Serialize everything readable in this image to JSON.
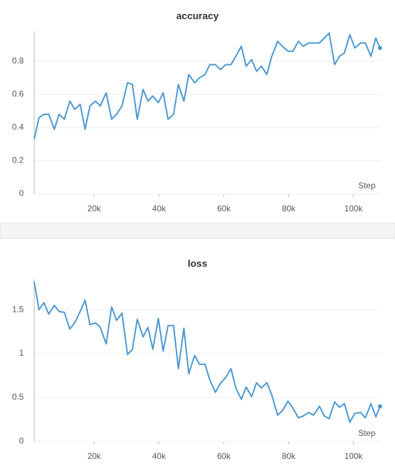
{
  "chart_data": [
    {
      "type": "line",
      "title": "accuracy",
      "xlabel": "Step",
      "x": [
        1500,
        3000,
        4500,
        6000,
        7700,
        9200,
        10800,
        12500,
        14000,
        15700,
        17200,
        18700,
        20400,
        21900,
        23700,
        25400,
        26900,
        28600,
        30300,
        31800,
        33300,
        35100,
        36600,
        38100,
        39800,
        41300,
        42800,
        44500,
        46000,
        47700,
        49200,
        51000,
        52500,
        54200,
        55700,
        57400,
        58900,
        60600,
        62200,
        63700,
        65400,
        66900,
        68600,
        70100,
        71600,
        73300,
        74800,
        76600,
        78100,
        79800,
        81300,
        83000,
        84500,
        86200,
        87700,
        89500,
        91000,
        92500,
        94200,
        95700,
        97200,
        98900,
        100400,
        102200,
        103700,
        105400,
        106900,
        108200
      ],
      "series": [
        {
          "name": "accuracy",
          "color": "#4a98d3",
          "values": [
            0.33,
            0.46,
            0.48,
            0.48,
            0.39,
            0.48,
            0.45,
            0.56,
            0.51,
            0.54,
            0.39,
            0.53,
            0.56,
            0.53,
            0.61,
            0.45,
            0.48,
            0.53,
            0.67,
            0.66,
            0.45,
            0.63,
            0.56,
            0.59,
            0.55,
            0.61,
            0.45,
            0.48,
            0.66,
            0.56,
            0.72,
            0.67,
            0.7,
            0.72,
            0.78,
            0.78,
            0.75,
            0.78,
            0.78,
            0.83,
            0.89,
            0.77,
            0.81,
            0.74,
            0.77,
            0.72,
            0.83,
            0.92,
            0.89,
            0.86,
            0.86,
            0.92,
            0.89,
            0.91,
            0.91,
            0.91,
            0.94,
            0.97,
            0.78,
            0.83,
            0.85,
            0.96,
            0.88,
            0.91,
            0.91,
            0.83,
            0.94,
            0.88
          ]
        }
      ],
      "xlim": [
        0,
        108300
      ],
      "ylim": [
        0,
        0.98
      ],
      "xticks": [
        {
          "value": 20000,
          "label": "20k"
        },
        {
          "value": 40000,
          "label": "40k"
        },
        {
          "value": 60000,
          "label": "60k"
        },
        {
          "value": 80000,
          "label": "80k"
        },
        {
          "value": 100000,
          "label": "100k"
        }
      ],
      "yticks": [
        0,
        0.2,
        0.4,
        0.6,
        0.8
      ],
      "grid": true
    },
    {
      "type": "line",
      "title": "loss",
      "xlabel": "Step",
      "x": [
        1500,
        3000,
        4500,
        6000,
        7700,
        9200,
        10800,
        12500,
        14000,
        15700,
        17200,
        18700,
        20400,
        21900,
        23700,
        25400,
        26900,
        28600,
        30300,
        31800,
        33300,
        35100,
        36600,
        38100,
        39800,
        41300,
        42800,
        44500,
        46000,
        47700,
        49200,
        51000,
        52500,
        54200,
        55700,
        57400,
        58900,
        60600,
        62200,
        63700,
        65400,
        66900,
        68600,
        70100,
        71600,
        73300,
        74800,
        76600,
        78100,
        79800,
        81300,
        83000,
        84500,
        86200,
        87700,
        89500,
        91000,
        92500,
        94200,
        95700,
        97200,
        98900,
        100400,
        102200,
        103700,
        105400,
        106900,
        108200
      ],
      "series": [
        {
          "name": "loss",
          "color": "#4a98d3",
          "values": [
            1.82,
            1.5,
            1.58,
            1.45,
            1.55,
            1.48,
            1.47,
            1.28,
            1.35,
            1.48,
            1.61,
            1.33,
            1.35,
            1.3,
            1.11,
            1.53,
            1.38,
            1.46,
            0.99,
            1.05,
            1.39,
            1.19,
            1.3,
            1.05,
            1.4,
            1.03,
            1.32,
            1.32,
            0.83,
            1.29,
            0.77,
            0.98,
            0.88,
            0.88,
            0.7,
            0.56,
            0.66,
            0.73,
            0.83,
            0.61,
            0.48,
            0.62,
            0.51,
            0.67,
            0.61,
            0.67,
            0.53,
            0.3,
            0.35,
            0.46,
            0.38,
            0.27,
            0.29,
            0.33,
            0.3,
            0.4,
            0.29,
            0.26,
            0.45,
            0.39,
            0.43,
            0.22,
            0.32,
            0.33,
            0.27,
            0.43,
            0.28,
            0.4
          ]
        }
      ],
      "xlim": [
        0,
        108300
      ],
      "ylim": [
        0,
        1.85
      ],
      "xticks": [
        {
          "value": 20000,
          "label": "20k"
        },
        {
          "value": 40000,
          "label": "40k"
        },
        {
          "value": 60000,
          "label": "60k"
        },
        {
          "value": 80000,
          "label": "80k"
        },
        {
          "value": 100000,
          "label": "100k"
        }
      ],
      "yticks": [
        0,
        0.5,
        1,
        1.5
      ],
      "grid": true
    }
  ]
}
